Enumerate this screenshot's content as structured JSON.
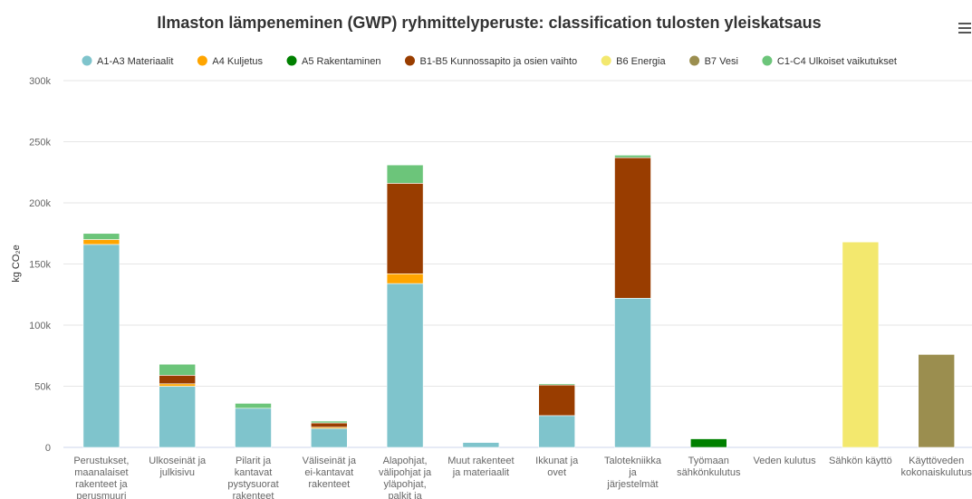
{
  "chart_data": {
    "type": "stacked_bar",
    "title": "Ilmaston lämpeneminen (GWP) ryhmittelyperuste: classification tulosten yleiskatsaus",
    "y_label": "kg CO₂e",
    "categories": [
      "Perustukset, maanalaiset rakenteet ja perusmuuri",
      "Ulkoseinät ja julkisivu",
      "Pilarit ja kantavat pystysuorat rakenteet",
      "Väliseinät ja ei-kantavat rakenteet",
      "Alapohjat, välipohjat ja yläpohjat, palkit ja katto",
      "Muut rakenteet ja materiaalit",
      "Ikkunat ja ovet",
      "Talotekniikka ja järjestelmät",
      "Työmaan sähkönkulutus",
      "Veden kulutus",
      "Sähkön käyttö",
      "Käyttöveden kokonaiskulutus"
    ],
    "series": [
      {
        "name": "A1-A3 Materiaalit",
        "color": "#7fc4cc",
        "values": [
          166000,
          50000,
          32000,
          15500,
          134000,
          4000,
          26000,
          122000,
          0,
          0,
          0,
          0
        ]
      },
      {
        "name": "A4 Kuljetus",
        "color": "#ffa500",
        "values": [
          4000,
          2000,
          0,
          1000,
          8000,
          0,
          0,
          0,
          0,
          0,
          0,
          0
        ]
      },
      {
        "name": "A5 Rakentaminen",
        "color": "#008000",
        "values": [
          0,
          0,
          0,
          0,
          0,
          0,
          0,
          0,
          7000,
          0,
          0,
          0
        ]
      },
      {
        "name": "B1-B5 Kunnossapito ja osien vaihto",
        "color": "#993d00",
        "values": [
          0,
          7000,
          0,
          3500,
          74000,
          0,
          25000,
          115000,
          0,
          0,
          0,
          0
        ]
      },
      {
        "name": "B6 Energia",
        "color": "#f3e86e",
        "values": [
          0,
          0,
          0,
          0,
          0,
          0,
          0,
          0,
          0,
          0,
          168000,
          0
        ]
      },
      {
        "name": "B7 Vesi",
        "color": "#9b8e4f",
        "values": [
          0,
          0,
          0,
          0,
          0,
          0,
          0,
          0,
          0,
          0,
          0,
          76000
        ]
      },
      {
        "name": "C1-C4 Ulkoiset vaikutukset",
        "color": "#6cc57a",
        "values": [
          5000,
          9000,
          4000,
          1500,
          15000,
          0,
          1000,
          2000,
          0,
          0,
          0,
          0
        ]
      }
    ],
    "ylim": [
      0,
      300000
    ],
    "yticks": [
      0,
      {
        "value": 50000,
        "label": "50k"
      },
      {
        "value": 100000,
        "label": "100k"
      },
      {
        "value": 150000,
        "label": "150k"
      },
      {
        "value": 200000,
        "label": "200k"
      },
      {
        "value": 250000,
        "label": "250k"
      },
      {
        "value": 300000,
        "label": "300k"
      }
    ],
    "grid": true
  }
}
